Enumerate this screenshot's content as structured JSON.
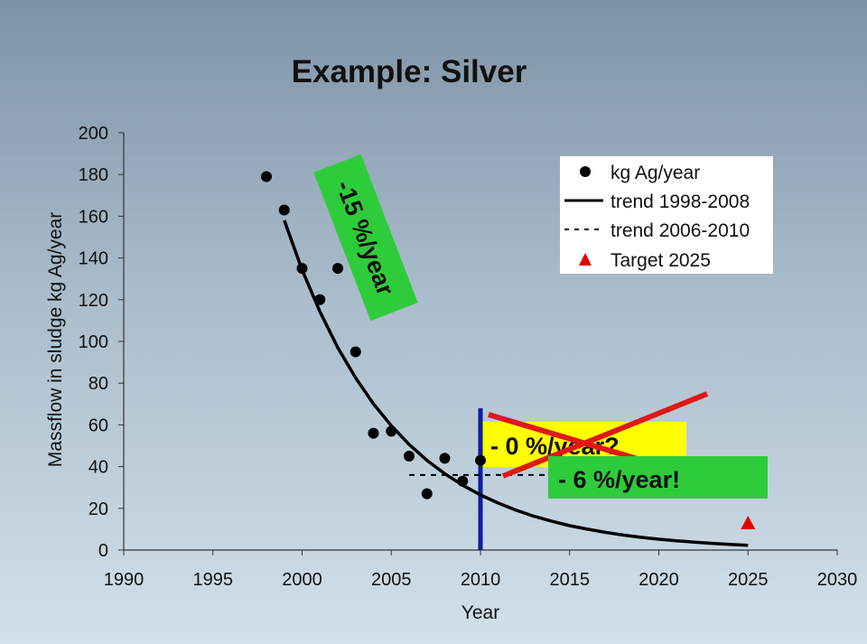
{
  "chart_data": {
    "type": "scatter",
    "title": "Example: Silver",
    "xlabel": "Year",
    "ylabel": "Massflow in sludge kg Ag/year",
    "xlim": [
      1990,
      2030
    ],
    "ylim": [
      0,
      200
    ],
    "xticks": [
      1990,
      1995,
      2000,
      2005,
      2010,
      2015,
      2020,
      2025,
      2030
    ],
    "yticks": [
      0,
      20,
      40,
      60,
      80,
      100,
      120,
      140,
      160,
      180,
      200
    ],
    "grid": false,
    "legend_position": "top-right",
    "series": [
      {
        "name": "kg Ag/year",
        "kind": "points",
        "x": [
          1998,
          1999,
          2000,
          2001,
          2002,
          2003,
          2004,
          2005,
          2006,
          2007,
          2008,
          2009,
          2010
        ],
        "y": [
          179,
          163,
          135,
          120,
          135,
          95,
          56,
          57,
          45,
          27,
          44,
          33,
          43
        ]
      },
      {
        "name": "trend 1998-2008",
        "kind": "solid-line",
        "x": [
          1999,
          2000,
          2001,
          2002,
          2003,
          2004,
          2005,
          2006,
          2007,
          2008,
          2009,
          2010,
          2011,
          2012,
          2013,
          2014,
          2015,
          2016,
          2017,
          2018,
          2019,
          2020,
          2021,
          2022,
          2023,
          2024,
          2025
        ],
        "y": [
          158,
          134.3,
          114.2,
          97.0,
          82.5,
          70.1,
          59.6,
          50.6,
          43.0,
          36.6,
          31.1,
          26.4,
          22.5,
          19.1,
          16.2,
          13.8,
          11.7,
          10.0,
          8.5,
          7.2,
          6.1,
          5.2,
          4.4,
          3.8,
          3.2,
          2.7,
          2.3
        ]
      },
      {
        "name": "trend 2006-2010",
        "kind": "dashed-line",
        "x": [
          2006,
          2015
        ],
        "y": [
          36,
          36
        ]
      },
      {
        "name": "Target 2025",
        "kind": "triangle",
        "x": [
          2025
        ],
        "y": [
          13
        ]
      }
    ],
    "annotations": {
      "slope_label": "-15 %/year",
      "zero_label": "- 0 %/year?",
      "six_label": "- 6 %/year!"
    },
    "colors": {
      "points": "#000000",
      "trend": "#000000",
      "target": "#e00000",
      "vline": "#0a1f9c",
      "green_box": "#2ecc3a",
      "yellow_box": "#ffff00",
      "cross": "#e01818"
    }
  }
}
